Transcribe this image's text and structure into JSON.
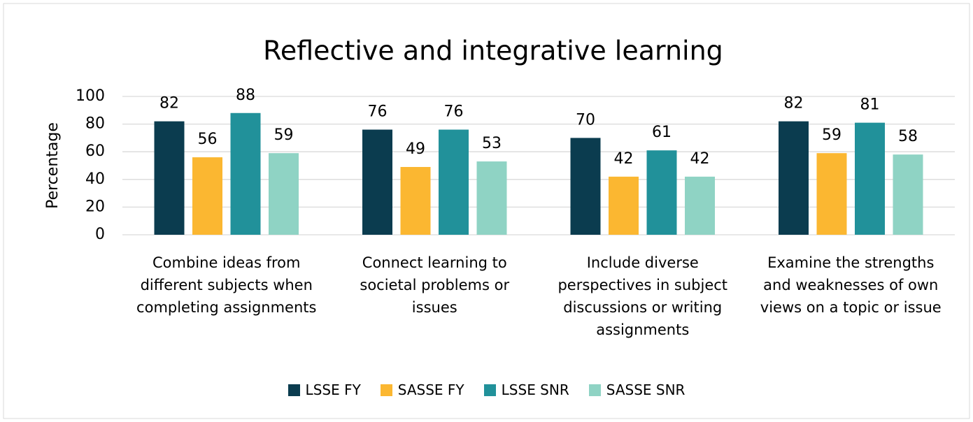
{
  "chart_data": {
    "type": "bar",
    "title": "Reflective and integrative learning",
    "y_label": "Percentage",
    "categories": [
      "Combine ideas from different subjects when completing assignments",
      "Connect learning to societal problems or issues",
      "Include diverse perspectives in subject discussions or writing assignments",
      "Examine the strengths and weaknesses of own views on a topic or issue"
    ],
    "series": [
      {
        "name": "LSSE FY",
        "color": "#0b3c4f",
        "values": [
          82,
          76,
          70,
          82
        ]
      },
      {
        "name": "SASSE FY",
        "color": "#fbb731",
        "values": [
          56,
          49,
          42,
          59
        ]
      },
      {
        "name": "LSSE SNR",
        "color": "#21919a",
        "values": [
          88,
          76,
          61,
          81
        ]
      },
      {
        "name": "SASSE SNR",
        "color": "#8fd3c4",
        "values": [
          59,
          53,
          42,
          58
        ]
      }
    ],
    "ylim": [
      0,
      100
    ],
    "yticks": [
      0,
      20,
      40,
      60,
      80,
      100
    ],
    "grid": true,
    "legend": "bottom"
  }
}
